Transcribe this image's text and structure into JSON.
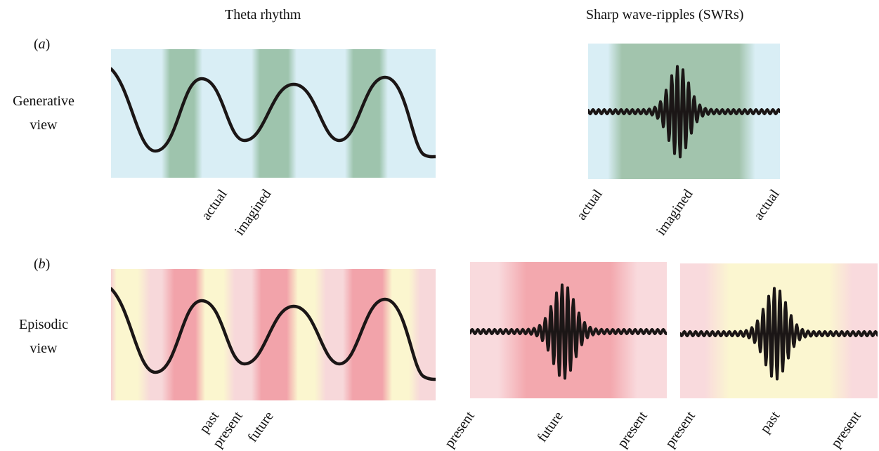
{
  "headers": {
    "left": "Theta rhythm",
    "right": "Sharp wave-ripples (SWRs)"
  },
  "panel_a": {
    "tag": "a",
    "row_label_line1": "Generative",
    "row_label_line2": "view",
    "theta_labels": [
      "actual",
      "imagined"
    ],
    "swr_labels": [
      "actual",
      "imagined",
      "actual"
    ]
  },
  "panel_b": {
    "tag": "b",
    "row_label_line1": "Episodic",
    "row_label_line2": "view",
    "theta_labels": [
      "past",
      "present",
      "future"
    ],
    "swr_future_labels": [
      "present",
      "future",
      "present"
    ],
    "swr_past_labels": [
      "present",
      "past",
      "present"
    ]
  },
  "colors": {
    "trace": "#1b1616",
    "actual_band": "#d9eef5",
    "imagined_band": "#9ec4ad",
    "past_band": "#fbf6cf",
    "present_band": "#f7d8da",
    "future_band": "#f2a3aa"
  }
}
